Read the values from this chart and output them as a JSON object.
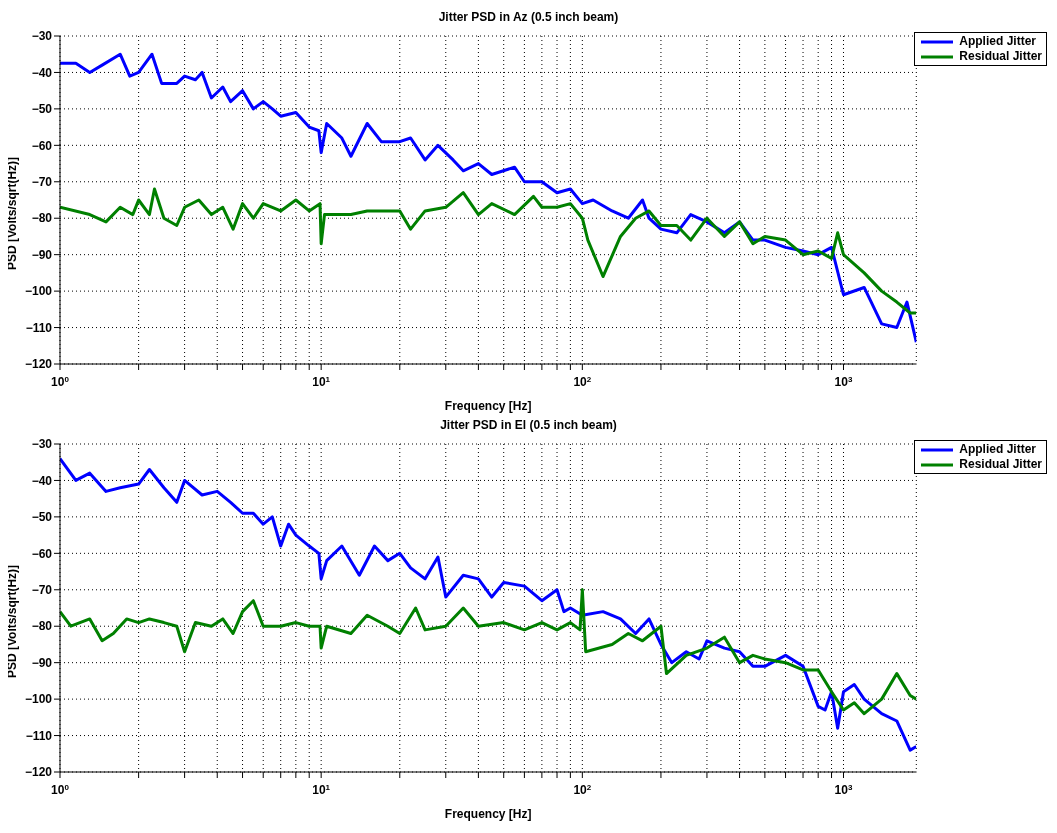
{
  "chart_data": [
    {
      "type": "line",
      "title": "Jitter PSD in Az (0.5 inch beam)",
      "xlabel": "Frequency [Hz]",
      "ylabel": "PSD [Volts/sqrt(Hz)]",
      "log": "x",
      "grid": true,
      "legend": "top right",
      "line_style": "solid",
      "marker": "none",
      "xlim": [
        1,
        1900
      ],
      "ylim": [
        -120,
        -30
      ],
      "xticks": [
        {
          "value": 1,
          "label": "10$^{0}$"
        },
        {
          "value": 2,
          "label": null
        },
        {
          "value": 3,
          "label": null
        },
        {
          "value": 4,
          "label": null
        },
        {
          "value": 5,
          "label": null
        },
        {
          "value": 6,
          "label": null
        },
        {
          "value": 7,
          "label": null
        },
        {
          "value": 8,
          "label": null
        },
        {
          "value": 9,
          "label": null
        },
        {
          "value": 10,
          "label": "10$^{1}$"
        },
        {
          "value": 20,
          "label": null
        },
        {
          "value": 30,
          "label": null
        },
        {
          "value": 40,
          "label": null
        },
        {
          "value": 50,
          "label": null
        },
        {
          "value": 60,
          "label": null
        },
        {
          "value": 70,
          "label": null
        },
        {
          "value": 80,
          "label": null
        },
        {
          "value": 90,
          "label": null
        },
        {
          "value": 100,
          "label": "10$^{2}$"
        },
        {
          "value": 200,
          "label": null
        },
        {
          "value": 300,
          "label": null
        },
        {
          "value": 400,
          "label": null
        },
        {
          "value": 500,
          "label": null
        },
        {
          "value": 600,
          "label": null
        },
        {
          "value": 700,
          "label": null
        },
        {
          "value": 800,
          "label": null
        },
        {
          "value": 900,
          "label": null
        },
        {
          "value": 1000,
          "label": "10$^{3}$"
        }
      ],
      "yticks": [
        -120,
        -110,
        -100,
        -90,
        -80,
        -70,
        -60,
        -50,
        -40,
        -30
      ],
      "series": [
        {
          "name": "Applied Jitter",
          "color": "#0000ff",
          "x": [
            1,
            1.15,
            1.3,
            1.45,
            1.7,
            1.85,
            2.0,
            2.25,
            2.45,
            2.8,
            3.0,
            3.3,
            3.5,
            3.8,
            4.2,
            4.5,
            5.0,
            5.5,
            6,
            6.5,
            7,
            8,
            9,
            9.8,
            10,
            10.5,
            12,
            13,
            15,
            17,
            20,
            22,
            25,
            28,
            32,
            35,
            40,
            45,
            55,
            60,
            70,
            80,
            90,
            100,
            110,
            130,
            150,
            170,
            180,
            200,
            230,
            260,
            300,
            350,
            400,
            450,
            500,
            600,
            700,
            800,
            900,
            1000,
            1200,
            1400,
            1600,
            1750,
            1900
          ],
          "values": [
            -37.5,
            -37.5,
            -40,
            -38,
            -35,
            -41,
            -40,
            -35,
            -43,
            -43,
            -41,
            -42,
            -40,
            -47,
            -44,
            -48,
            -45,
            -50,
            -48,
            -50,
            -52,
            -51,
            -55,
            -56,
            -62,
            -54,
            -58,
            -63,
            -54,
            -59,
            -59,
            -58,
            -64,
            -60,
            -64,
            -67,
            -65,
            -68,
            -66,
            -70,
            -70,
            -73,
            -72,
            -76,
            -75,
            -78,
            -80,
            -75,
            -80,
            -83,
            -84,
            -79,
            -81,
            -84,
            -81,
            -86,
            -86,
            -88,
            -89,
            -90,
            -88,
            -101,
            -99,
            -109,
            -110,
            -103,
            -114
          ]
        },
        {
          "name": "Residual Jitter",
          "color": "#008000",
          "x": [
            1,
            1.3,
            1.5,
            1.7,
            1.9,
            2.0,
            2.2,
            2.3,
            2.5,
            2.8,
            3.0,
            3.4,
            3.8,
            4.2,
            4.6,
            5,
            5.5,
            6,
            7,
            8,
            9,
            9.9,
            10,
            10.3,
            13,
            15,
            20,
            22,
            25,
            30,
            35,
            40,
            45,
            55,
            65,
            70,
            80,
            90,
            100,
            105,
            120,
            140,
            160,
            180,
            200,
            230,
            260,
            300,
            350,
            400,
            450,
            500,
            600,
            700,
            800,
            900,
            950,
            1000,
            1200,
            1400,
            1600,
            1800,
            1900
          ],
          "values": [
            -77,
            -79,
            -81,
            -77,
            -79,
            -75,
            -79,
            -72,
            -80,
            -82,
            -77,
            -75,
            -79,
            -77,
            -83,
            -76,
            -80,
            -76,
            -78,
            -75,
            -78,
            -76,
            -87,
            -79,
            -79,
            -78,
            -78,
            -83,
            -78,
            -77,
            -73,
            -79,
            -76,
            -79,
            -74,
            -77,
            -77,
            -76,
            -80,
            -86,
            -96,
            -85,
            -80,
            -78,
            -82,
            -82,
            -86,
            -80,
            -85,
            -81,
            -87,
            -85,
            -86,
            -90,
            -89,
            -91,
            -84,
            -90,
            -95,
            -100,
            -103,
            -106,
            -106
          ]
        }
      ]
    },
    {
      "type": "line",
      "title": "Jitter PSD in El (0.5 inch beam)",
      "xlabel": "Frequency [Hz]",
      "ylabel": "PSD [Volts/sqrt(Hz)]",
      "log": "x",
      "grid": true,
      "legend": "top right",
      "line_style": "solid",
      "marker": "none",
      "xlim": [
        1,
        1900
      ],
      "ylim": [
        -120,
        -30
      ],
      "xticks": [
        {
          "value": 1,
          "label": "10$^{0}$"
        },
        {
          "value": 2,
          "label": null
        },
        {
          "value": 3,
          "label": null
        },
        {
          "value": 4,
          "label": null
        },
        {
          "value": 5,
          "label": null
        },
        {
          "value": 6,
          "label": null
        },
        {
          "value": 7,
          "label": null
        },
        {
          "value": 8,
          "label": null
        },
        {
          "value": 9,
          "label": null
        },
        {
          "value": 10,
          "label": "10$^{1}$"
        },
        {
          "value": 20,
          "label": null
        },
        {
          "value": 30,
          "label": null
        },
        {
          "value": 40,
          "label": null
        },
        {
          "value": 50,
          "label": null
        },
        {
          "value": 60,
          "label": null
        },
        {
          "value": 70,
          "label": null
        },
        {
          "value": 80,
          "label": null
        },
        {
          "value": 90,
          "label": null
        },
        {
          "value": 100,
          "label": "10$^{2}$"
        },
        {
          "value": 200,
          "label": null
        },
        {
          "value": 300,
          "label": null
        },
        {
          "value": 400,
          "label": null
        },
        {
          "value": 500,
          "label": null
        },
        {
          "value": 600,
          "label": null
        },
        {
          "value": 700,
          "label": null
        },
        {
          "value": 800,
          "label": null
        },
        {
          "value": 900,
          "label": null
        },
        {
          "value": 1000,
          "label": "10$^{3}$"
        }
      ],
      "yticks": [
        -120,
        -110,
        -100,
        -90,
        -80,
        -70,
        -60,
        -50,
        -40,
        -30
      ],
      "series": [
        {
          "name": "Applied Jitter",
          "color": "#0000ff",
          "x": [
            1,
            1.15,
            1.3,
            1.5,
            1.7,
            2.0,
            2.2,
            2.5,
            2.8,
            3.0,
            3.5,
            4,
            4.5,
            5,
            5.5,
            6,
            6.5,
            7,
            7.5,
            8,
            9,
            9.8,
            10,
            10.5,
            12,
            14,
            16,
            18,
            20,
            22,
            25,
            28,
            30,
            35,
            40,
            45,
            50,
            60,
            70,
            80,
            85,
            90,
            100,
            120,
            140,
            160,
            180,
            200,
            220,
            250,
            280,
            300,
            350,
            400,
            450,
            500,
            600,
            700,
            800,
            850,
            900,
            950,
            1000,
            1100,
            1200,
            1400,
            1600,
            1800,
            1900
          ],
          "values": [
            -34,
            -40,
            -38,
            -43,
            -42,
            -41,
            -37,
            -42,
            -46,
            -40,
            -44,
            -43,
            -46,
            -49,
            -49,
            -52,
            -50,
            -58,
            -52,
            -55,
            -58,
            -60,
            -67,
            -62,
            -58,
            -66,
            -58,
            -62,
            -60,
            -64,
            -67,
            -61,
            -72,
            -66,
            -67,
            -72,
            -68,
            -69,
            -73,
            -70,
            -76,
            -75,
            -77,
            -76,
            -78,
            -82,
            -78,
            -85,
            -90,
            -87,
            -89,
            -84,
            -86,
            -87,
            -91,
            -91,
            -88,
            -91,
            -102,
            -103,
            -98,
            -108,
            -98,
            -96,
            -100,
            -104,
            -106,
            -114,
            -113
          ]
        },
        {
          "name": "Residual Jitter",
          "color": "#008000",
          "x": [
            1,
            1.1,
            1.3,
            1.45,
            1.6,
            1.8,
            2,
            2.2,
            2.5,
            2.8,
            3,
            3.3,
            3.8,
            4.2,
            4.6,
            5,
            5.5,
            6,
            7,
            8,
            9,
            9.9,
            10,
            10.5,
            13,
            15,
            18,
            20,
            23,
            25,
            30,
            35,
            40,
            50,
            60,
            70,
            80,
            90,
            98,
            100,
            103,
            130,
            150,
            170,
            200,
            210,
            250,
            300,
            350,
            400,
            450,
            500,
            600,
            700,
            800,
            900,
            1000,
            1100,
            1200,
            1400,
            1600,
            1800,
            1900
          ],
          "values": [
            -76,
            -80,
            -78,
            -84,
            -82,
            -78,
            -79,
            -78,
            -79,
            -80,
            -87,
            -79,
            -80,
            -78,
            -82,
            -76,
            -73,
            -80,
            -80,
            -79,
            -80,
            -80,
            -86,
            -80,
            -82,
            -77,
            -80,
            -82,
            -75,
            -81,
            -80,
            -75,
            -80,
            -79,
            -81,
            -79,
            -81,
            -79,
            -81,
            -70,
            -87,
            -85,
            -82,
            -84,
            -80,
            -93,
            -88,
            -86,
            -83,
            -90,
            -88,
            -89,
            -90,
            -92,
            -92,
            -98,
            -103,
            -101,
            -104,
            -100,
            -93,
            -99,
            -100
          ]
        }
      ]
    }
  ]
}
